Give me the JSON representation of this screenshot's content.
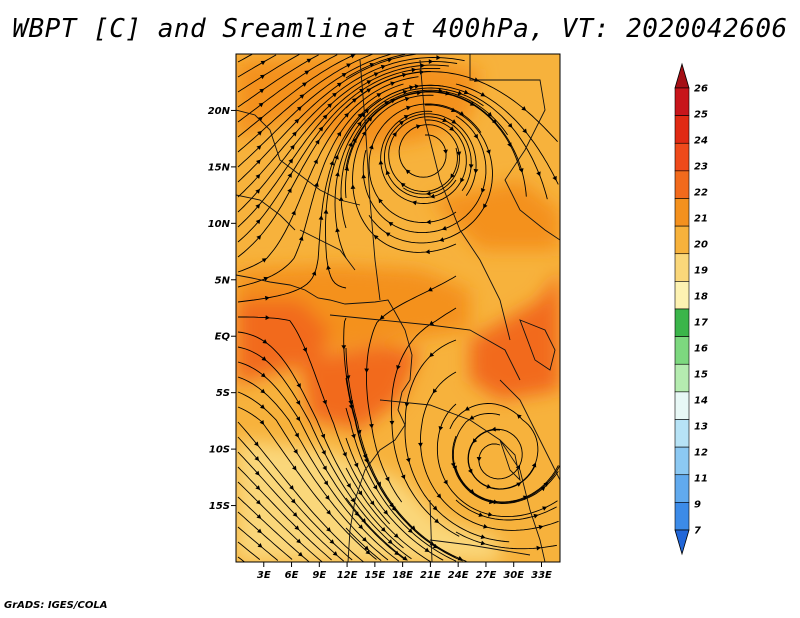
{
  "title": "WBPT [C] and Sreamline at 400hPa, VT: 2020042606",
  "footer": "GrADS: IGES/COLA",
  "map": {
    "variable": "WBPT [C]",
    "level": "400hPa",
    "valid_time": "2020042606",
    "lat_range": [
      -20,
      25
    ],
    "lon_range": [
      0,
      35
    ],
    "lat_ticks": [
      {
        "value": 20,
        "label": "20N"
      },
      {
        "value": 15,
        "label": "15N"
      },
      {
        "value": 10,
        "label": "10N"
      },
      {
        "value": 5,
        "label": "5N"
      },
      {
        "value": 0,
        "label": "EQ"
      },
      {
        "value": -5,
        "label": "5S"
      },
      {
        "value": -10,
        "label": "10S"
      },
      {
        "value": -15,
        "label": "15S"
      }
    ],
    "lon_ticks": [
      {
        "value": 3,
        "label": "3E"
      },
      {
        "value": 6,
        "label": "6E"
      },
      {
        "value": 9,
        "label": "9E"
      },
      {
        "value": 12,
        "label": "12E"
      },
      {
        "value": 15,
        "label": "15E"
      },
      {
        "value": 18,
        "label": "18E"
      },
      {
        "value": 21,
        "label": "21E"
      },
      {
        "value": 24,
        "label": "24E"
      },
      {
        "value": 27,
        "label": "27E"
      },
      {
        "value": 30,
        "label": "30E"
      },
      {
        "value": 33,
        "label": "33E"
      }
    ]
  },
  "colorbar": {
    "levels": [
      "26",
      "25",
      "24",
      "23",
      "22",
      "21",
      "20",
      "19",
      "18",
      "17",
      "16",
      "15",
      "14",
      "13",
      "12",
      "11",
      "9",
      "7"
    ],
    "colors": [
      "#a50f15",
      "#c8151b",
      "#e02a13",
      "#ef4a1b",
      "#f26a1c",
      "#f4911e",
      "#f7b23c",
      "#fad77a",
      "#fdf2b2",
      "#3bb54a",
      "#7dd87f",
      "#b5ecb0",
      "#e8f8f6",
      "#b7e3f6",
      "#8cc9f3",
      "#61aaee",
      "#3c8be8",
      "#2166d8"
    ]
  }
}
